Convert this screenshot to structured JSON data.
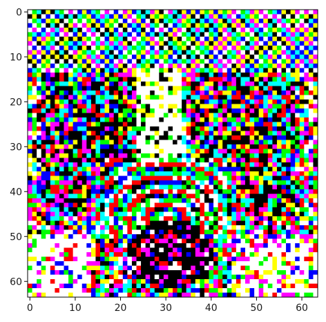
{
  "chart_data": {
    "type": "heatmap",
    "title": "",
    "xlabel": "",
    "ylabel": "",
    "xlim": [
      -0.5,
      63.5
    ],
    "ylim": [
      63.5,
      -0.5
    ],
    "x_ticks": [
      0,
      10,
      20,
      30,
      40,
      50,
      60
    ],
    "y_ticks": [
      0,
      10,
      20,
      30,
      40,
      50,
      60
    ],
    "grid": false,
    "image_size": [
      64,
      64
    ],
    "content": "64x64 RGB pixel image of a dog face (noisy, high-saturation colors)",
    "colors": {
      "axes": "#000000",
      "text": "#1a1a1a",
      "dominant_pixels": [
        "#ff0000",
        "#00ff00",
        "#0000ff",
        "#ff00ff",
        "#ffff00",
        "#00ffff",
        "#ffffff",
        "#000000"
      ]
    }
  }
}
